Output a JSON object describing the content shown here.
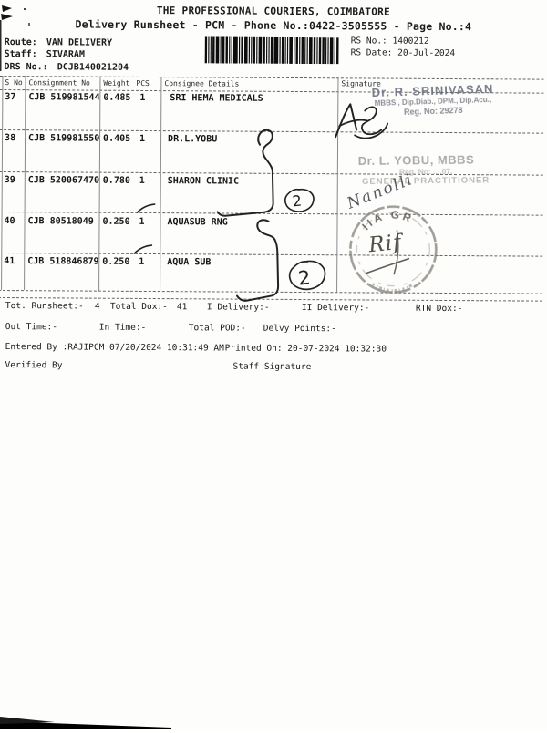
{
  "header": {
    "title": "THE PROFESSIONAL COURIERS, COIMBATORE",
    "subtitle": "Delivery Runsheet - PCM - Phone No.:0422-3505555 - Page No.:4",
    "route_label": "Route:",
    "route_value": "VAN DELIVERY",
    "staff_label": "Staff:",
    "staff_value": "SIVARAM",
    "drs_label": "DRS No.:",
    "drs_value": "DCJB140021204",
    "rs_no_label": "RS No.:",
    "rs_no_value": "1400212",
    "rs_date_label": "RS Date:",
    "rs_date_value": "20-Jul-2024"
  },
  "table": {
    "headers": {
      "sno": "S No",
      "consignment": "Consignment No",
      "weight": "Weight",
      "pcs": "PCS",
      "consignee": "Consignee Details",
      "signature": "Signature"
    },
    "rows": [
      {
        "sno": "37",
        "consignment": "CJB 519981544",
        "weight": "0.485",
        "pcs": "1",
        "consignee": "SRI HEMA MEDICALS"
      },
      {
        "sno": "38",
        "consignment": "CJB 519981550",
        "weight": "0.405",
        "pcs": "1",
        "consignee": "DR.L.YOBU"
      },
      {
        "sno": "39",
        "consignment": "CJB 520067470",
        "weight": "0.780",
        "pcs": "1",
        "consignee": "SHARON CLINIC"
      },
      {
        "sno": "40",
        "consignment": "CJB 80518049",
        "weight": "0.250",
        "pcs": "1",
        "consignee": "AQUASUB RNG"
      },
      {
        "sno": "41",
        "consignment": "CJB 518846879",
        "weight": "0.250",
        "pcs": "1",
        "consignee": "AQUA SUB"
      }
    ]
  },
  "stamps": {
    "srinivasan": {
      "name": "Dr. R. SRINIVASAN",
      "qualifications": "MBBS., Dip.Diab., DPM., Dip.Acu.,",
      "reg": "Reg. No: 29278"
    },
    "yobu": {
      "name": "Dr. L. YOBU, MBBS",
      "reg": "Reg. No: ....07,",
      "designation": "GENERAL PRACTITIONER"
    },
    "round": {
      "arc_text": "IIA GR",
      "monogram": "Rif"
    }
  },
  "handwriting": {
    "circled_count_row39": "2",
    "circled_count_row41": "2",
    "signature_over_yobu_stamp": "Nanolli"
  },
  "summary": {
    "tot_runsheet_label": "Tot. Runsheet:-",
    "tot_runsheet_value": "4",
    "total_dox_label": "Total Dox:-",
    "total_dox_value": "41",
    "i_delivery_label": "I Delivery:-",
    "ii_delivery_label": "II Delivery:-",
    "rtn_dox_label": "RTN Dox:-",
    "out_time_label": "Out Time:-",
    "in_time_label": "In Time:-",
    "total_pod_label": "Total POD:-",
    "delvy_points_label": "Delvy Points:-",
    "entered_by": "Entered By :RAJIPCM 07/20/2024 10:31:49 AM",
    "printed_on": "Printed On: 20-07-2024 10:32:30",
    "verified_by_label": "Verified By",
    "staff_signature_label": "Staff Signature"
  }
}
